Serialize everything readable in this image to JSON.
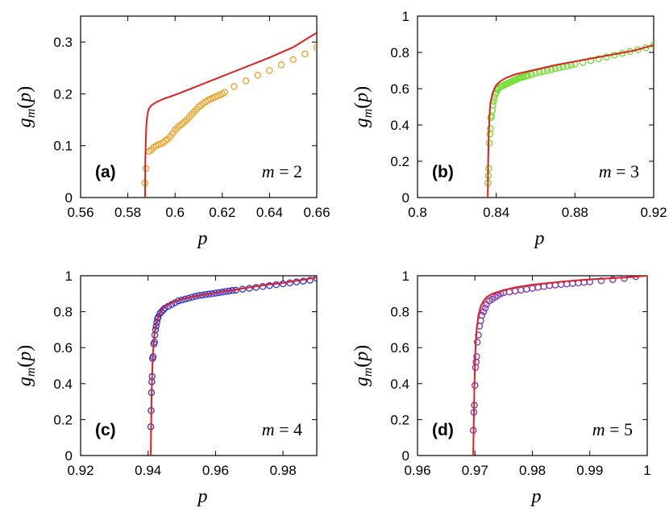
{
  "chart_data": [
    {
      "panel": "a",
      "type": "scatter",
      "tag": "(a)",
      "m_var": "m",
      "m_eq": " = 2",
      "xlabel": "p",
      "ylabel": "g_m(p)",
      "xlim": [
        0.56,
        0.66
      ],
      "ylim": [
        0,
        0.35
      ],
      "xticks": [
        0.56,
        0.58,
        0.6,
        0.62,
        0.64,
        0.66
      ],
      "xtick_labels": [
        "0.56",
        "0.58",
        "0.6",
        "0.62",
        "0.64",
        "0.66"
      ],
      "yticks": [
        0,
        0.1,
        0.2,
        0.3
      ],
      "ytick_labels": [
        "0",
        "0.1",
        "0.2",
        "0.3"
      ],
      "marker_color": "#f0a020",
      "line_color": "#e02020",
      "curve": {
        "x": [
          0.5873,
          0.5874,
          0.5876,
          0.5878,
          0.588,
          0.5885,
          0.589,
          0.59,
          0.592,
          0.595,
          0.6,
          0.61,
          0.62,
          0.63,
          0.64,
          0.65,
          0.66
        ],
        "y": [
          0.0,
          0.07,
          0.11,
          0.135,
          0.15,
          0.165,
          0.172,
          0.178,
          0.184,
          0.19,
          0.198,
          0.216,
          0.234,
          0.252,
          0.27,
          0.29,
          0.318
        ]
      },
      "points": {
        "x": [
          0.5872,
          0.5877,
          0.589,
          0.59,
          0.591,
          0.592,
          0.593,
          0.594,
          0.595,
          0.596,
          0.597,
          0.598,
          0.599,
          0.6,
          0.601,
          0.602,
          0.603,
          0.604,
          0.605,
          0.606,
          0.607,
          0.608,
          0.609,
          0.61,
          0.611,
          0.612,
          0.613,
          0.614,
          0.615,
          0.616,
          0.617,
          0.618,
          0.619,
          0.62,
          0.621,
          0.625,
          0.63,
          0.635,
          0.64,
          0.645,
          0.65,
          0.655,
          0.66
        ],
        "y": [
          0.028,
          0.056,
          0.089,
          0.092,
          0.097,
          0.1,
          0.102,
          0.104,
          0.106,
          0.11,
          0.113,
          0.118,
          0.124,
          0.13,
          0.135,
          0.139,
          0.142,
          0.146,
          0.15,
          0.155,
          0.16,
          0.165,
          0.17,
          0.175,
          0.178,
          0.182,
          0.185,
          0.188,
          0.19,
          0.192,
          0.194,
          0.196,
          0.198,
          0.2,
          0.203,
          0.214,
          0.225,
          0.236,
          0.245,
          0.256,
          0.266,
          0.277,
          0.29
        ]
      }
    },
    {
      "panel": "b",
      "type": "scatter",
      "tag": "(b)",
      "m_var": "m",
      "m_eq": " = 3",
      "xlabel": "p",
      "ylabel": "g_m(p)",
      "xlim": [
        0.8,
        0.92
      ],
      "ylim": [
        0,
        1
      ],
      "xticks": [
        0.8,
        0.84,
        0.88,
        0.92
      ],
      "xtick_labels": [
        "0.8",
        "0.84",
        "0.88",
        "0.92"
      ],
      "yticks": [
        0,
        0.2,
        0.4,
        0.6,
        0.8,
        1
      ],
      "ytick_labels": [
        "0",
        "0.2",
        "0.4",
        "0.6",
        "0.8",
        "1"
      ],
      "marker_color": "#66dd22",
      "line_color": "#e02020",
      "curve": {
        "x": [
          0.8357,
          0.8359,
          0.8362,
          0.8366,
          0.837,
          0.838,
          0.839,
          0.84,
          0.842,
          0.845,
          0.85,
          0.86,
          0.87,
          0.88,
          0.89,
          0.9,
          0.91,
          0.92
        ],
        "y": [
          0.0,
          0.2,
          0.35,
          0.45,
          0.52,
          0.57,
          0.6,
          0.62,
          0.64,
          0.66,
          0.68,
          0.705,
          0.73,
          0.75,
          0.77,
          0.79,
          0.81,
          0.84
        ]
      },
      "points": {
        "x": [
          0.8358,
          0.836,
          0.8362,
          0.8365,
          0.8368,
          0.837,
          0.8372,
          0.8375,
          0.838,
          0.8383,
          0.8386,
          0.839,
          0.8395,
          0.84,
          0.8405,
          0.841,
          0.842,
          0.843,
          0.844,
          0.845,
          0.846,
          0.847,
          0.848,
          0.849,
          0.85,
          0.851,
          0.852,
          0.853,
          0.854,
          0.855,
          0.856,
          0.858,
          0.86,
          0.862,
          0.864,
          0.866,
          0.868,
          0.87,
          0.872,
          0.874,
          0.876,
          0.878,
          0.88,
          0.884,
          0.888,
          0.892,
          0.896,
          0.9,
          0.904,
          0.908,
          0.912,
          0.916,
          0.92
        ],
        "y": [
          0.08,
          0.12,
          0.16,
          0.3,
          0.35,
          0.38,
          0.44,
          0.45,
          0.48,
          0.51,
          0.53,
          0.55,
          0.57,
          0.58,
          0.595,
          0.6,
          0.61,
          0.615,
          0.62,
          0.625,
          0.63,
          0.635,
          0.64,
          0.645,
          0.65,
          0.655,
          0.66,
          0.662,
          0.665,
          0.668,
          0.672,
          0.678,
          0.685,
          0.69,
          0.695,
          0.7,
          0.705,
          0.71,
          0.715,
          0.72,
          0.725,
          0.73,
          0.735,
          0.745,
          0.755,
          0.765,
          0.775,
          0.785,
          0.795,
          0.805,
          0.815,
          0.825,
          0.84
        ]
      }
    },
    {
      "panel": "c",
      "type": "scatter",
      "tag": "(c)",
      "m_var": "m",
      "m_eq": " = 4",
      "xlabel": "p",
      "ylabel": "g_m(p)",
      "xlim": [
        0.92,
        0.99
      ],
      "ylim": [
        0,
        1
      ],
      "xticks": [
        0.92,
        0.94,
        0.96,
        0.98
      ],
      "xtick_labels": [
        "0.92",
        "0.94",
        "0.96",
        "0.98"
      ],
      "yticks": [
        0,
        0.2,
        0.4,
        0.6,
        0.8,
        1
      ],
      "ytick_labels": [
        "0",
        "0.2",
        "0.4",
        "0.6",
        "0.8",
        "1"
      ],
      "marker_color": "#3030d0",
      "line_color": "#e02020",
      "curve": {
        "x": [
          0.9408,
          0.9409,
          0.941,
          0.9412,
          0.9414,
          0.9417,
          0.942,
          0.9425,
          0.943,
          0.944,
          0.945,
          0.947,
          0.95,
          0.955,
          0.96,
          0.965,
          0.97,
          0.975,
          0.98,
          0.985,
          0.99
        ],
        "y": [
          0.0,
          0.15,
          0.3,
          0.45,
          0.55,
          0.63,
          0.69,
          0.74,
          0.77,
          0.81,
          0.83,
          0.85,
          0.87,
          0.89,
          0.905,
          0.92,
          0.935,
          0.95,
          0.96,
          0.975,
          0.99
        ]
      },
      "points": {
        "x": [
          0.9408,
          0.9409,
          0.941,
          0.9411,
          0.9412,
          0.9413,
          0.9415,
          0.9417,
          0.9419,
          0.942,
          0.9422,
          0.9424,
          0.9426,
          0.9428,
          0.943,
          0.9435,
          0.944,
          0.9445,
          0.945,
          0.946,
          0.947,
          0.948,
          0.949,
          0.95,
          0.951,
          0.952,
          0.953,
          0.954,
          0.955,
          0.956,
          0.957,
          0.958,
          0.959,
          0.96,
          0.961,
          0.962,
          0.963,
          0.964,
          0.965,
          0.966,
          0.968,
          0.97,
          0.972,
          0.974,
          0.976,
          0.978,
          0.98,
          0.982,
          0.984,
          0.986,
          0.988,
          0.99
        ],
        "y": [
          0.16,
          0.25,
          0.35,
          0.41,
          0.44,
          0.54,
          0.55,
          0.62,
          0.63,
          0.67,
          0.7,
          0.72,
          0.74,
          0.76,
          0.77,
          0.79,
          0.8,
          0.81,
          0.82,
          0.83,
          0.84,
          0.85,
          0.86,
          0.865,
          0.87,
          0.875,
          0.88,
          0.885,
          0.89,
          0.892,
          0.895,
          0.898,
          0.9,
          0.903,
          0.906,
          0.909,
          0.912,
          0.915,
          0.918,
          0.92,
          0.925,
          0.93,
          0.935,
          0.94,
          0.945,
          0.95,
          0.955,
          0.96,
          0.965,
          0.97,
          0.975,
          0.985
        ]
      }
    },
    {
      "panel": "d",
      "type": "scatter",
      "tag": "(d)",
      "m_var": "m",
      "m_eq": " = 5",
      "xlabel": "p",
      "ylabel": "g_m(p)",
      "xlim": [
        0.96,
        1.0
      ],
      "ylim": [
        0,
        1
      ],
      "xticks": [
        0.96,
        0.97,
        0.98,
        0.99,
        1.0
      ],
      "xtick_labels": [
        "0.96",
        "0.97",
        "0.98",
        "0.99",
        "1"
      ],
      "yticks": [
        0,
        0.2,
        0.4,
        0.6,
        0.8,
        1
      ],
      "ytick_labels": [
        "0",
        "0.2",
        "0.4",
        "0.6",
        "0.8",
        "1"
      ],
      "marker_color": "#8030b0",
      "line_color": "#e02020",
      "curve": {
        "x": [
          0.9697,
          0.9698,
          0.9699,
          0.97,
          0.9701,
          0.9703,
          0.9706,
          0.971,
          0.9715,
          0.972,
          0.973,
          0.975,
          0.977,
          0.98,
          0.983,
          0.986,
          0.99,
          0.993,
          0.996,
          1.0
        ],
        "y": [
          0.0,
          0.2,
          0.38,
          0.5,
          0.6,
          0.7,
          0.78,
          0.83,
          0.86,
          0.88,
          0.9,
          0.92,
          0.935,
          0.95,
          0.96,
          0.97,
          0.98,
          0.985,
          0.99,
          1.0
        ]
      },
      "points": {
        "x": [
          0.9697,
          0.9698,
          0.9699,
          0.97,
          0.9701,
          0.9702,
          0.9703,
          0.9704,
          0.9706,
          0.9708,
          0.971,
          0.9712,
          0.9715,
          0.9718,
          0.972,
          0.9725,
          0.973,
          0.9735,
          0.974,
          0.9745,
          0.975,
          0.976,
          0.977,
          0.978,
          0.979,
          0.98,
          0.981,
          0.982,
          0.983,
          0.984,
          0.985,
          0.986,
          0.987,
          0.988,
          0.989,
          0.99,
          0.992,
          0.994,
          0.996,
          0.998
        ],
        "y": [
          0.14,
          0.24,
          0.28,
          0.39,
          0.49,
          0.52,
          0.55,
          0.63,
          0.67,
          0.72,
          0.75,
          0.78,
          0.8,
          0.82,
          0.84,
          0.86,
          0.87,
          0.88,
          0.89,
          0.9,
          0.905,
          0.91,
          0.915,
          0.92,
          0.925,
          0.93,
          0.935,
          0.94,
          0.945,
          0.948,
          0.951,
          0.954,
          0.957,
          0.96,
          0.963,
          0.966,
          0.972,
          0.978,
          0.985,
          0.995
        ]
      }
    }
  ]
}
